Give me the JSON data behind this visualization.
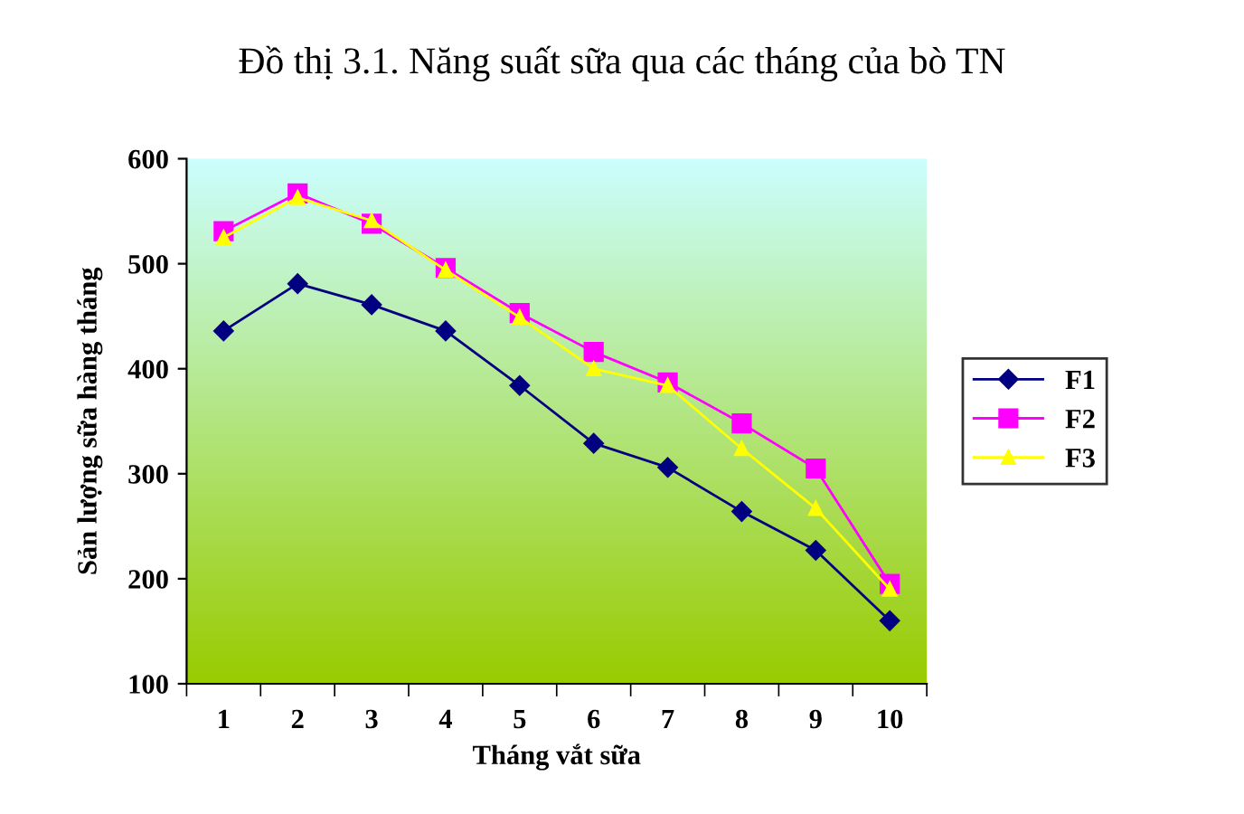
{
  "chart_data": {
    "type": "line",
    "title": "Đồ thị 3.1. Năng suất sữa qua các tháng của bò TN",
    "xlabel": "Tháng vắt sữa",
    "ylabel": "Sản lượng sữa hàng tháng",
    "categories": [
      "1",
      "2",
      "3",
      "4",
      "5",
      "6",
      "7",
      "8",
      "9",
      "10"
    ],
    "series": [
      {
        "name": "F1",
        "color": "#000080",
        "marker": "diamond",
        "values": [
          436,
          481,
          461,
          436,
          384,
          329,
          306,
          264,
          227,
          160
        ]
      },
      {
        "name": "F2",
        "color": "#ff00ff",
        "marker": "square",
        "values": [
          531,
          567,
          538,
          496,
          453,
          416,
          387,
          348,
          305,
          195
        ]
      },
      {
        "name": "F3",
        "color": "#ffff00",
        "marker": "triangle",
        "values": [
          525,
          563,
          541,
          494,
          449,
          400,
          384,
          324,
          267,
          190
        ]
      }
    ],
    "ylim": [
      100,
      600
    ],
    "yticks": [
      100,
      200,
      300,
      400,
      500,
      600
    ],
    "grid": false,
    "legend": "right",
    "line_style": "solid"
  }
}
